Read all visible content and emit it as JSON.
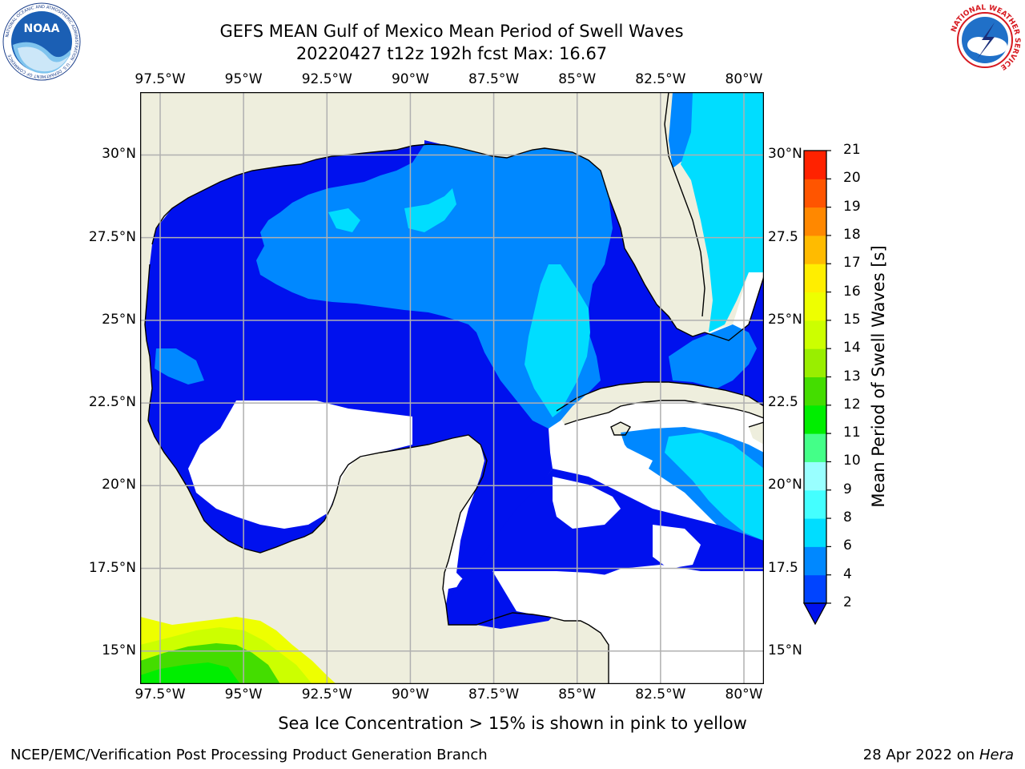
{
  "header": {
    "title_line1": "GEFS MEAN Gulf of Mexico Mean Period of Swell Waves",
    "title_line2": "20220427 t12z 192h fcst   Max: 16.67"
  },
  "logos": {
    "left": {
      "name": "NOAA",
      "text": "NOAA",
      "ring_text": "NATIONAL OCEANIC AND ATMOSPHERIC ADMINISTRATION · U.S. DEPARTMENT OF COMMERCE"
    },
    "right": {
      "name": "National Weather Service",
      "ring_text": "NATIONAL WEATHER SERVICE"
    }
  },
  "map": {
    "lon_ticks": [
      "97.5°W",
      "95°W",
      "92.5°W",
      "90°W",
      "87.5°W",
      "85°W",
      "82.5°W",
      "80°W"
    ],
    "lat_ticks_left": [
      "30°N",
      "27.5°N",
      "25°N",
      "22.5°N",
      "20°N",
      "17.5°N",
      "15°N"
    ],
    "lat_ticks_right": [
      "30°N",
      "27.5",
      "25°N",
      "22.5",
      "20°N",
      "17.5",
      "15°N"
    ],
    "lon_range": [
      -98.1,
      -79.4
    ],
    "lat_range": [
      14.0,
      31.9
    ],
    "land_color": "#eeeedd",
    "grid": true
  },
  "colorbar": {
    "label": "Mean Period of Swell Waves [s]",
    "ticks": [
      "2",
      "4",
      "6",
      "8",
      "9",
      "10",
      "11",
      "12",
      "13",
      "14",
      "15",
      "16",
      "17",
      "18",
      "19",
      "20",
      "21"
    ],
    "colors": [
      "#0044ff",
      "#0088ff",
      "#00ddff",
      "#44ffff",
      "#99ffff",
      "#44ff88",
      "#00ee00",
      "#44dd00",
      "#99ee00",
      "#ccff00",
      "#eeff00",
      "#ffee00",
      "#ffbb00",
      "#ff8800",
      "#ff5500",
      "#ff2200"
    ],
    "extend": "min",
    "under_color": "#0011ee"
  },
  "footer": {
    "caption": "Sea Ice Concentration > 15% is shown in pink to yellow",
    "org": "NCEP/EMC/Verification Post Processing Product Generation Branch",
    "date": "28 Apr 2022 on",
    "host": "Hera"
  }
}
